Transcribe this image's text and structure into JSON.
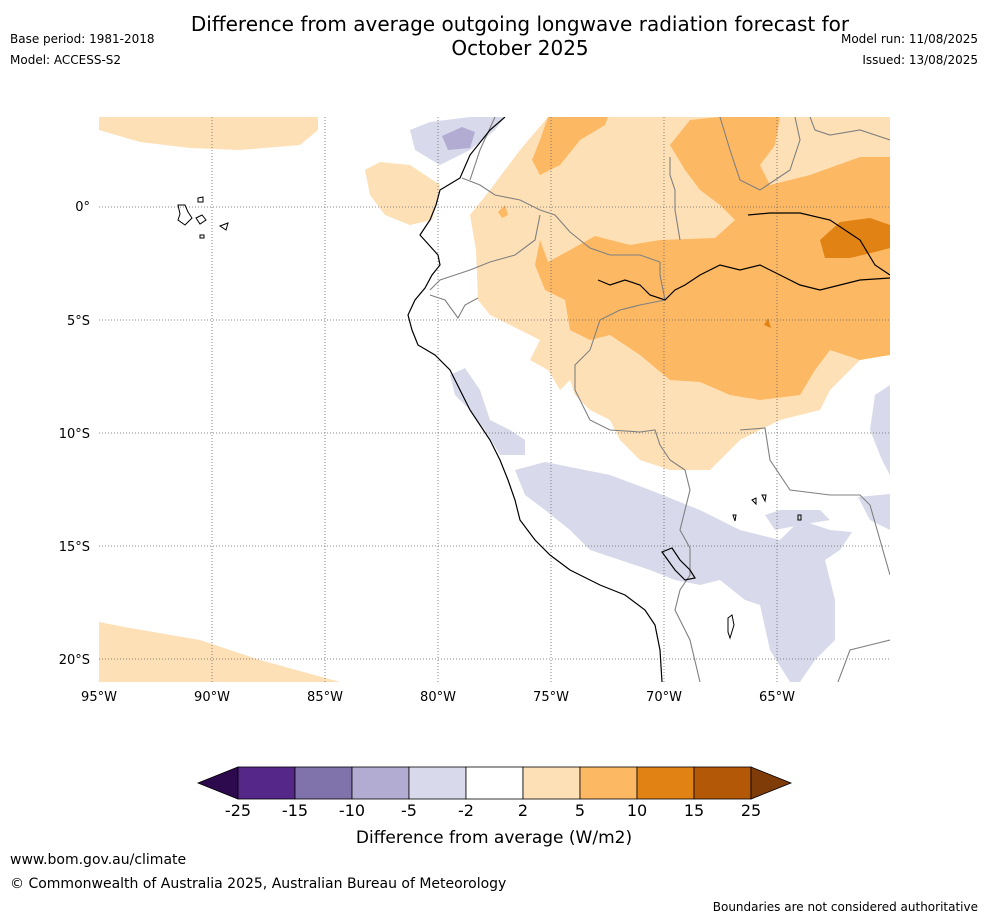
{
  "title_line1": "Difference from average outgoing longwave radiation forecast for",
  "title_line2": "October 2025",
  "base_period": "Base period: 1981-2018",
  "model": "Model: ACCESS-S2",
  "model_run": "Model run: 11/08/2025",
  "issued": "Issued: 13/08/2025",
  "lat_labels": [
    "0°",
    "5°S",
    "10°S",
    "15°S",
    "20°S"
  ],
  "lon_labels": [
    "95°W",
    "90°W",
    "85°W",
    "80°W",
    "75°W",
    "70°W",
    "65°W"
  ],
  "colorbar": {
    "tick_labels": [
      "-25",
      "-15",
      "-10",
      "-5",
      "-2",
      "2",
      "5",
      "10",
      "15",
      "25"
    ],
    "label": "Difference from average (W/m2)",
    "colors": {
      "lt_neg25": "#2d0a4e",
      "neg25_neg15": "#542788",
      "neg15_neg10": "#8073ac",
      "neg10_neg5": "#b2abd2",
      "neg5_neg2": "#d8daeb",
      "neg2_2": "#ffffff",
      "p2_5": "#fee0b6",
      "p5_10": "#fdb863",
      "p10_15": "#e08214",
      "p15_25": "#b35806",
      "gt25": "#7f3b08"
    }
  },
  "footer_url": "www.bom.gov.au/climate",
  "footer_copyright": "© Commonwealth of Australia 2025, Australian Bureau of Meteorology",
  "footer_note": "Boundaries are not considered authoritative"
}
